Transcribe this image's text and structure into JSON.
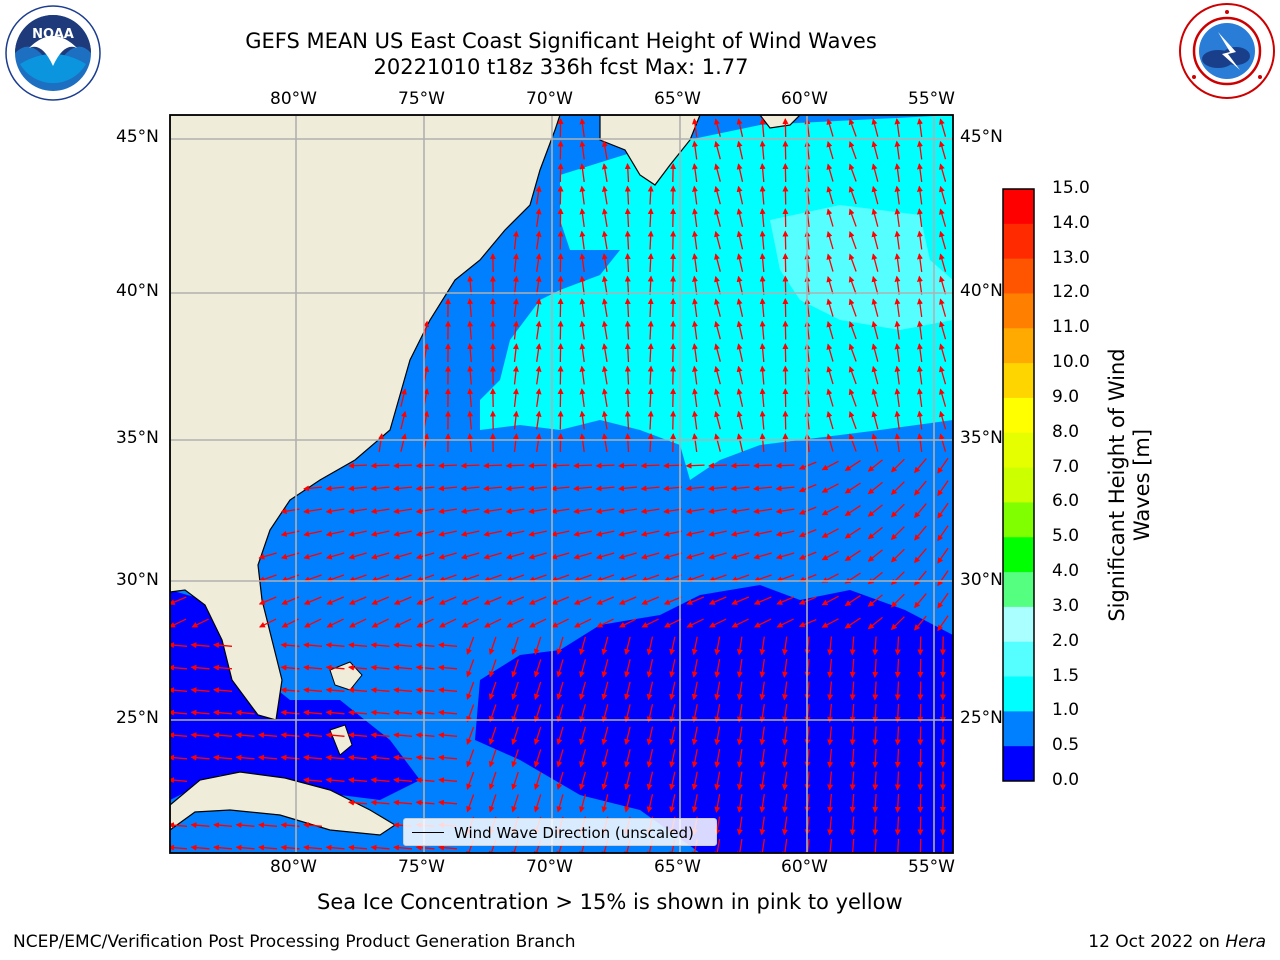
{
  "title": {
    "line1": "GEFS MEAN US East Coast Significant Height of Wind Waves",
    "line2": "20221010 t18z 336h fcst   Max: 1.77"
  },
  "logos": {
    "left": {
      "icon": "noaa-logo",
      "text": "NOAA"
    },
    "right": {
      "icon": "nws-logo"
    }
  },
  "map": {
    "lon_labels": [
      "80°W",
      "75°W",
      "70°W",
      "65°W",
      "60°W",
      "55°W"
    ],
    "lat_labels": [
      "45°N",
      "40°N",
      "35°N",
      "30°N",
      "25°N"
    ],
    "colors": {
      "land": "#efedd9",
      "low": "#0000ff",
      "mid": "#0080ff",
      "high": "#00ffff",
      "higher": "#55ffff",
      "arrow": "#ff0000",
      "grid": "#b0b0b0"
    }
  },
  "legend": {
    "label": "Wind Wave Direction (unscaled)"
  },
  "colorbar": {
    "label": "Significant Height of Wind Waves [m]",
    "ticks": [
      "15.0",
      "14.0",
      "13.0",
      "12.0",
      "11.0",
      "10.0",
      "9.0",
      "8.0",
      "7.0",
      "6.0",
      "5.0",
      "4.0",
      "3.0",
      "2.0",
      "1.5",
      "1.0",
      "0.5",
      "0.0"
    ],
    "colors": [
      "#ff0000",
      "#ff2a00",
      "#ff5500",
      "#ff8000",
      "#ffaa00",
      "#ffd500",
      "#ffff00",
      "#e5ff00",
      "#ccff00",
      "#80ff00",
      "#00ff00",
      "#55ff80",
      "#aaffff",
      "#55ffff",
      "#00ffff",
      "#0080ff",
      "#0000ff"
    ]
  },
  "note": "Sea Ice Concentration > 15% is shown in pink to yellow",
  "footer": {
    "left": "NCEP/EMC/Verification Post Processing Product Generation Branch",
    "date": "12 Oct 2022 on ",
    "machine": "Hera"
  }
}
